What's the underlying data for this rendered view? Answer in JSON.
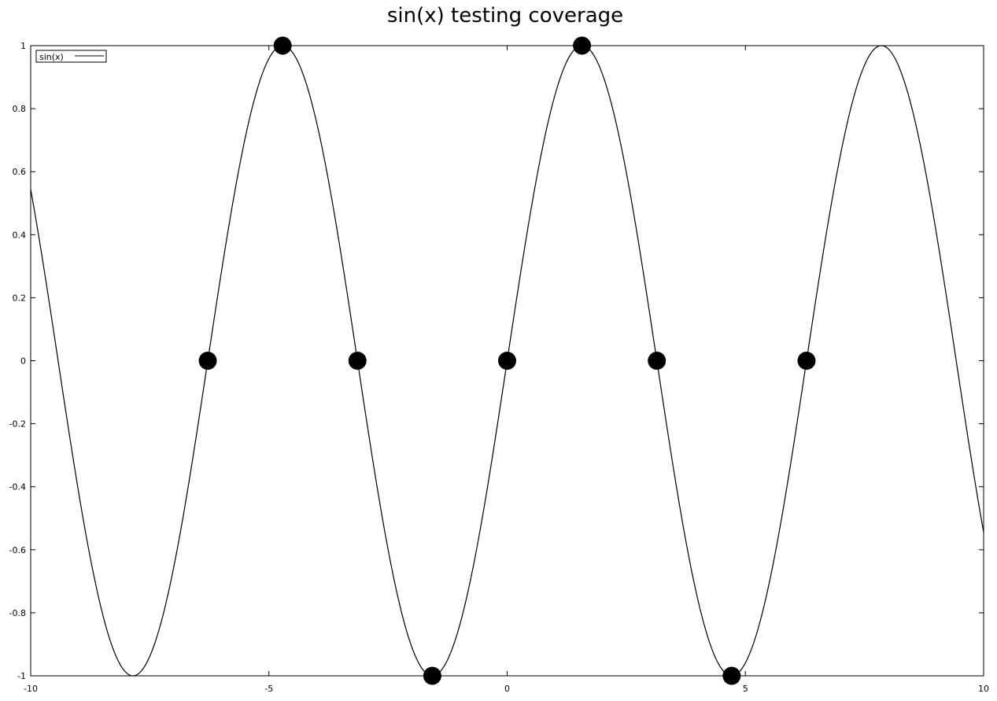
{
  "chart_data": {
    "type": "line",
    "title": "sin(x) testing coverage",
    "xlabel": "",
    "ylabel": "",
    "xlim": [
      -10,
      10
    ],
    "ylim": [
      -1,
      1
    ],
    "grid": false,
    "legend_position": "top-left",
    "x_ticks": [
      "-10",
      "-5",
      "0",
      "5",
      "10"
    ],
    "y_ticks": [
      "1",
      "0.8",
      "0.6",
      "0.4",
      "0.2",
      "0",
      "-0.2",
      "-0.4",
      "-0.6",
      "-0.8",
      "-1"
    ],
    "series": [
      {
        "name": "sin(x)",
        "function": "sin",
        "color": "#000000"
      }
    ],
    "points": {
      "x": [
        -6.2832,
        -4.7124,
        -3.1416,
        -1.5708,
        0,
        1.5708,
        3.1416,
        4.7124,
        6.2832
      ],
      "y": [
        0,
        1,
        0,
        -1,
        0,
        1,
        0,
        -1,
        0
      ],
      "color": "#000000"
    }
  }
}
